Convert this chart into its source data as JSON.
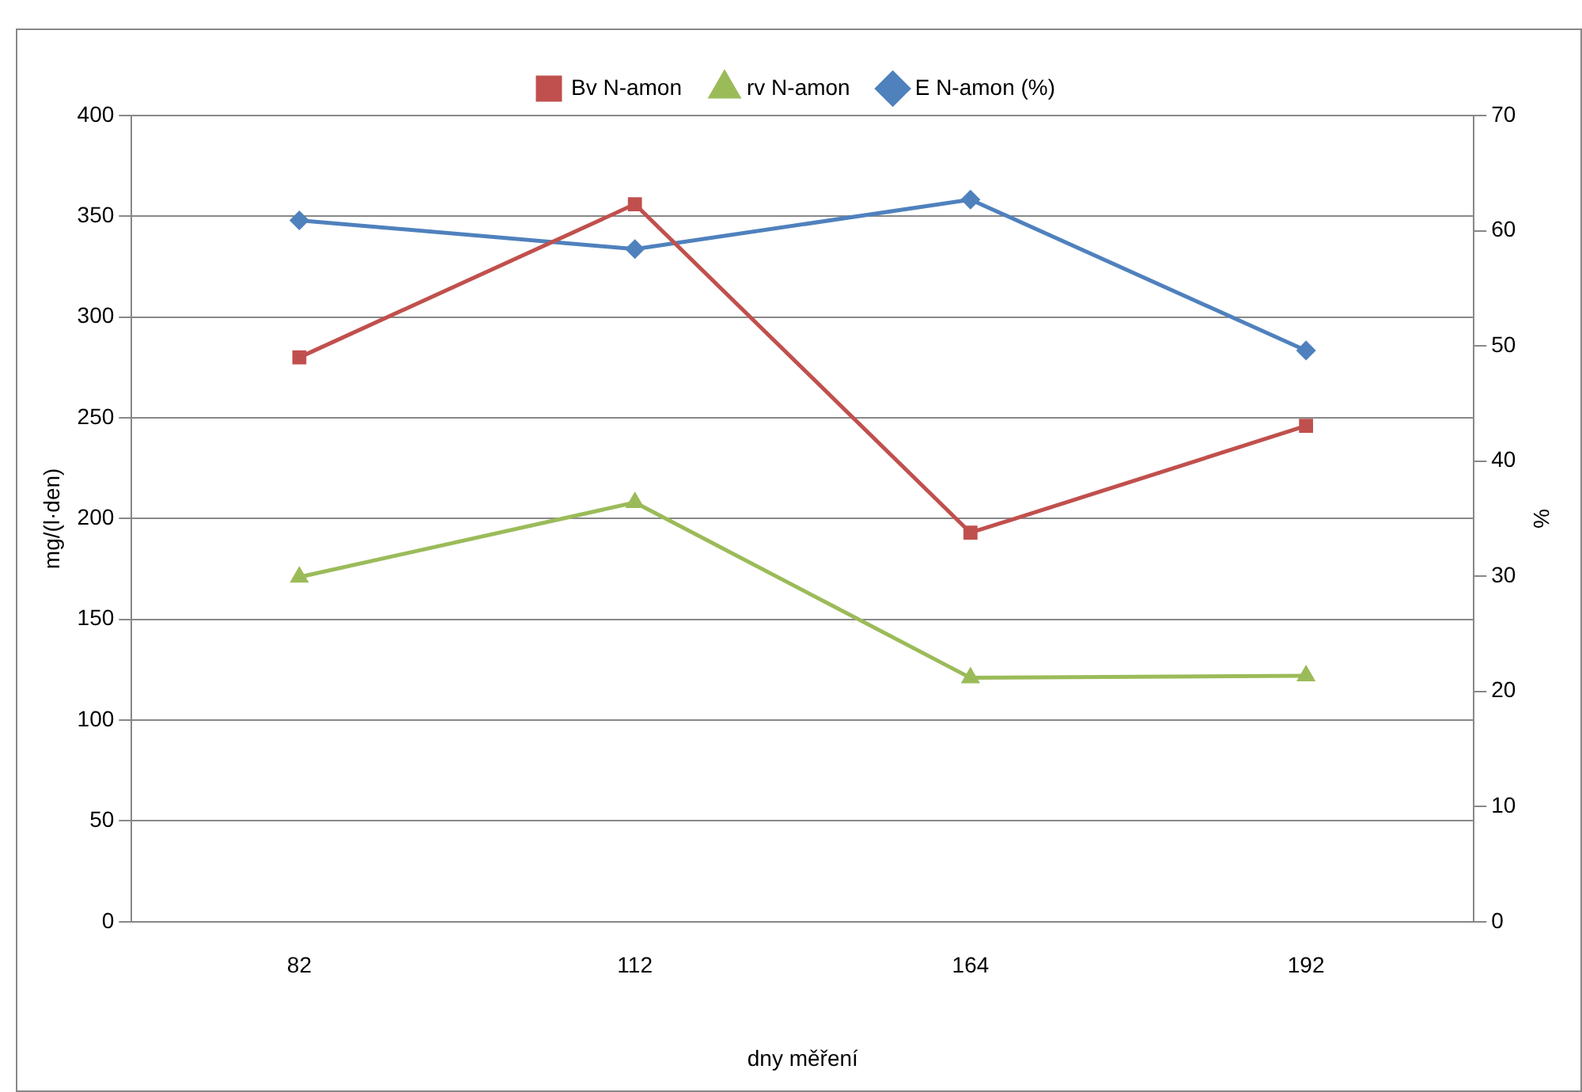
{
  "chart_data": {
    "type": "line",
    "xlabel": "dny měření",
    "ylabel": "mg/(l·den)",
    "y2label": "%",
    "categories": [
      "82",
      "112",
      "164",
      "192"
    ],
    "series": [
      {
        "name": "Bv N-amon",
        "color": "#c0504d",
        "marker": "square",
        "values": [
          280,
          356,
          193,
          246
        ]
      },
      {
        "name": "rv N-amon",
        "color": "#9bbb59",
        "marker": "triangle",
        "values": [
          171,
          208,
          121,
          122
        ]
      },
      {
        "name": "E N-amon (%)",
        "color": "#4f81bd",
        "marker": "diamond",
        "axis": "y2",
        "values": [
          60.9,
          58.4,
          62.7,
          49.6
        ]
      }
    ],
    "ylim": [
      0,
      400
    ],
    "yticks": [
      0,
      50,
      100,
      150,
      200,
      250,
      300,
      350,
      400
    ],
    "y2lim": [
      0,
      70
    ],
    "y2ticks": [
      0,
      10,
      20,
      30,
      40,
      50,
      60,
      70
    ],
    "grid": "y",
    "legend": "top",
    "line_style": "solid"
  }
}
